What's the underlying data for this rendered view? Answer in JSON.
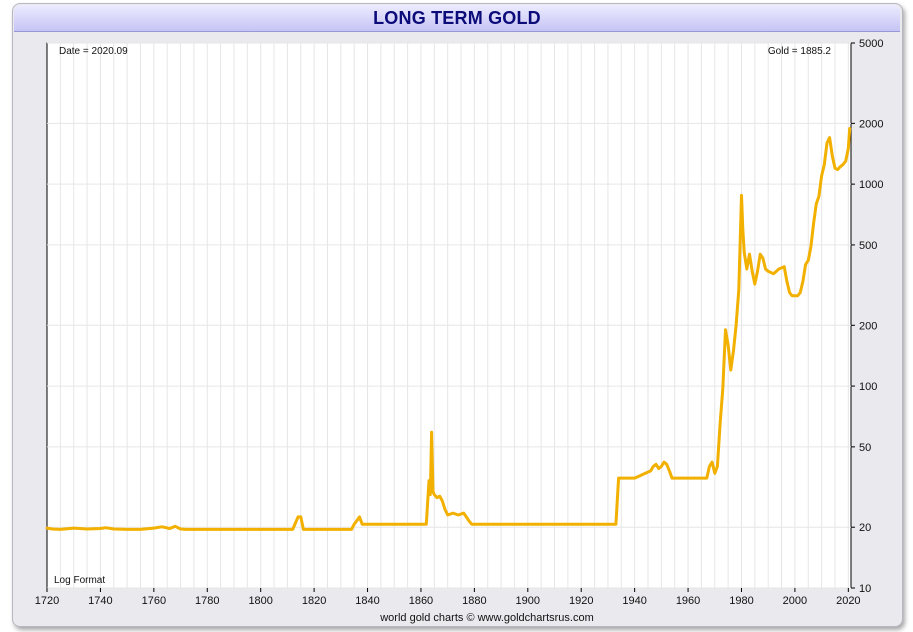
{
  "chart_data": {
    "type": "line",
    "title": "LONG TERM GOLD",
    "scale": "log",
    "ylim": [
      10,
      5000
    ],
    "xlim": [
      1720,
      2021
    ],
    "y_ticks": [
      10,
      20,
      50,
      100,
      200,
      500,
      1000,
      2000,
      5000
    ],
    "x_ticks": [
      1720,
      1740,
      1760,
      1780,
      1800,
      1820,
      1840,
      1860,
      1880,
      1900,
      1920,
      1940,
      1960,
      1980,
      2000,
      2020
    ],
    "grid": true,
    "line_color": "#f2b000",
    "date_readout": "Date = 2020.09",
    "value_readout": "Gold = 1885.2",
    "format_label": "Log Format",
    "footer": "world gold charts © www.goldchartsrus.com",
    "x": [
      1720,
      1722,
      1725,
      1730,
      1735,
      1740,
      1742,
      1745,
      1750,
      1755,
      1760,
      1763,
      1766,
      1768,
      1770,
      1772,
      1780,
      1790,
      1800,
      1812,
      1814,
      1815,
      1816,
      1817,
      1818,
      1820,
      1825,
      1830,
      1834,
      1835,
      1837,
      1838,
      1840,
      1850,
      1860,
      1861,
      1862,
      1863,
      1863.5,
      1864,
      1864.5,
      1865,
      1866,
      1867,
      1868,
      1869,
      1870,
      1872,
      1874,
      1876,
      1878,
      1879,
      1880,
      1890,
      1900,
      1910,
      1920,
      1930,
      1933,
      1934,
      1935,
      1940,
      1942,
      1944,
      1946,
      1947,
      1948,
      1949,
      1950,
      1951,
      1952,
      1953,
      1954,
      1956,
      1960,
      1965,
      1967,
      1968,
      1969,
      1970,
      1971,
      1972,
      1973,
      1974,
      1975,
      1976,
      1977,
      1978,
      1979,
      1980,
      1980.5,
      1981,
      1982,
      1983,
      1984,
      1985,
      1986,
      1987,
      1988,
      1989,
      1990,
      1992,
      1994,
      1996,
      1997,
      1998,
      1999,
      2000,
      2001,
      2002,
      2003,
      2004,
      2005,
      2006,
      2007,
      2008,
      2009,
      2010,
      2011,
      2012,
      2013,
      2014,
      2015,
      2016,
      2017,
      2018,
      2019,
      2020,
      2020.5
    ],
    "values": [
      19.8,
      19.6,
      19.5,
      19.8,
      19.6,
      19.7,
      19.9,
      19.6,
      19.5,
      19.5,
      19.8,
      20.1,
      19.7,
      20.2,
      19.6,
      19.5,
      19.5,
      19.5,
      19.5,
      19.5,
      22.5,
      22.5,
      19.5,
      19.5,
      19.5,
      19.5,
      19.5,
      19.5,
      19.5,
      20.7,
      22.5,
      20.7,
      20.7,
      20.7,
      20.7,
      20.7,
      20.7,
      34,
      29,
      59,
      30,
      29,
      28,
      28.5,
      27,
      24.5,
      23,
      23.5,
      23,
      23.5,
      21.5,
      20.7,
      20.7,
      20.7,
      20.7,
      20.7,
      20.7,
      20.7,
      20.7,
      35,
      35,
      35,
      36,
      37,
      38,
      40,
      41,
      39,
      40,
      42,
      41,
      38,
      35,
      35,
      35,
      35,
      35,
      40,
      42,
      37,
      40,
      65,
      97,
      190,
      160,
      120,
      150,
      200,
      300,
      880,
      600,
      460,
      380,
      450,
      370,
      320,
      370,
      450,
      430,
      380,
      370,
      360,
      380,
      390,
      330,
      290,
      280,
      280,
      280,
      290,
      330,
      400,
      420,
      490,
      640,
      800,
      870,
      1100,
      1250,
      1600,
      1700,
      1380,
      1200,
      1180,
      1220,
      1250,
      1300,
      1500,
      1885
    ]
  }
}
